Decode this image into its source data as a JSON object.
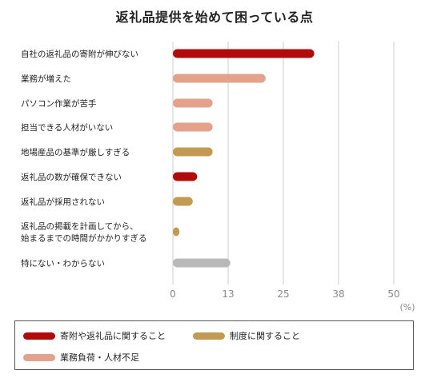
{
  "chart_data": {
    "type": "bar",
    "orientation": "horizontal",
    "title": "返礼品提供を始めて困っている点",
    "unit": "(%)",
    "xlim": [
      0,
      50
    ],
    "ticks": [
      "0",
      "13",
      "25",
      "38",
      "50"
    ],
    "grid": true,
    "legend_position": "bottom",
    "categories": [
      [
        "自社の返礼品の寄附が伸びない"
      ],
      [
        "業務が増えた"
      ],
      [
        "パソコン作業が苦手"
      ],
      [
        "担当できる人材がいない"
      ],
      [
        "地場産品の基準が厳しすぎる"
      ],
      [
        "返礼品の数が確保できない"
      ],
      [
        "返礼品が採用されない"
      ],
      [
        "返礼品の掲載を計画してから、",
        "始まるまでの時間がかかりすぎる"
      ],
      [
        "特にない・わからない"
      ]
    ],
    "values": [
      32,
      21,
      9,
      9,
      9,
      5.5,
      4.5,
      1.5,
      13
    ],
    "groups": [
      "donation",
      "workload",
      "workload",
      "workload",
      "system",
      "donation",
      "system",
      "system",
      "none"
    ],
    "series": [
      {
        "name": "寄附や返礼品に関すること",
        "key": "donation",
        "color": "#b00a0a"
      },
      {
        "name": "制度に関すること",
        "key": "system",
        "color": "#c39a52"
      },
      {
        "name": "業務負荷・人材不足",
        "key": "workload",
        "color": "#e3a28c"
      }
    ],
    "none_color": "#b9b9b9"
  }
}
